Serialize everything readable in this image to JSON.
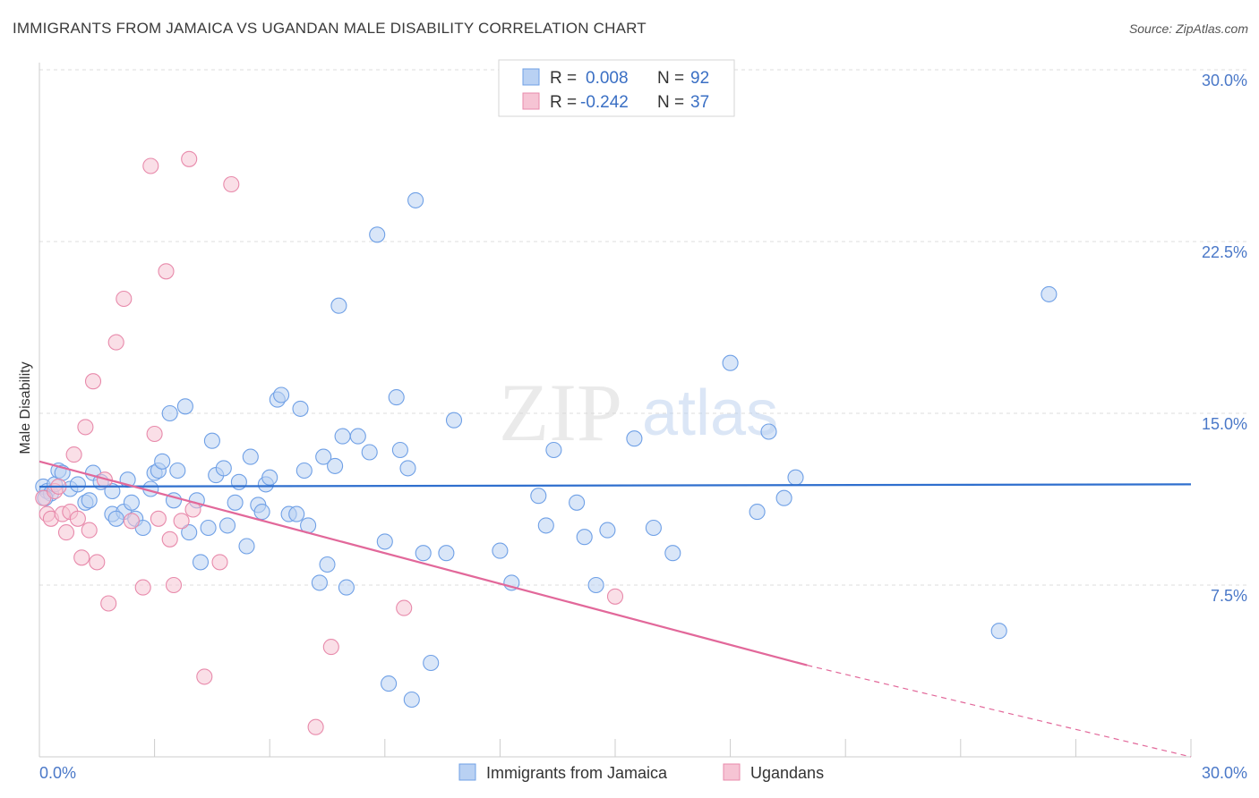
{
  "title": "IMMIGRANTS FROM JAMAICA VS UGANDAN MALE DISABILITY CORRELATION CHART",
  "source": "Source: ZipAtlas.com",
  "watermark": {
    "zip": "ZIP",
    "atlas": "atlas"
  },
  "colors": {
    "blue": "#6fa0e6",
    "blue_fill": "#b9d1f3",
    "blue_line": "#2f6fce",
    "pink": "#e88aab",
    "pink_fill": "#f6c4d4",
    "pink_line": "#e2689a",
    "tick_text": "#4a78c8"
  },
  "legend": {
    "rows": [
      {
        "r_label": "R =",
        "r_value": "0.008",
        "n_label": "N =",
        "n_value": "92"
      },
      {
        "r_label": "R =",
        "r_value": "-0.242",
        "n_label": "N =",
        "n_value": "37"
      }
    ]
  },
  "chart_data": {
    "type": "scatter",
    "ylabel": "Male Disability",
    "xlim": [
      0,
      30
    ],
    "ylim": [
      0,
      30
    ],
    "x_tick_labels": [
      "0.0%",
      "30.0%"
    ],
    "y_ticks": [
      7.5,
      15.0,
      22.5,
      30.0
    ],
    "y_tick_labels": [
      "7.5%",
      "15.0%",
      "22.5%",
      "30.0%"
    ],
    "grid": "horizontal dashed",
    "series": [
      {
        "name": "Immigrants from Jamaica",
        "color": "#6fa0e6",
        "trend": {
          "x": [
            0,
            30
          ],
          "y": [
            11.8,
            11.9
          ]
        },
        "points": [
          [
            0.1,
            11.8
          ],
          [
            0.2,
            11.6
          ],
          [
            0.3,
            11.5
          ],
          [
            0.4,
            11.9
          ],
          [
            0.5,
            12.5
          ],
          [
            0.6,
            12.4
          ],
          [
            0.8,
            11.7
          ],
          [
            1.0,
            11.9
          ],
          [
            1.2,
            11.1
          ],
          [
            1.3,
            11.2
          ],
          [
            1.4,
            12.4
          ],
          [
            1.6,
            12.0
          ],
          [
            1.9,
            11.6
          ],
          [
            1.9,
            10.6
          ],
          [
            2.2,
            10.7
          ],
          [
            2.3,
            12.1
          ],
          [
            2.4,
            11.1
          ],
          [
            2.5,
            10.4
          ],
          [
            2.7,
            10.0
          ],
          [
            2.9,
            11.7
          ],
          [
            3.0,
            12.4
          ],
          [
            3.1,
            12.5
          ],
          [
            3.2,
            12.9
          ],
          [
            3.4,
            15.0
          ],
          [
            3.5,
            11.2
          ],
          [
            3.6,
            12.5
          ],
          [
            3.8,
            15.3
          ],
          [
            3.9,
            9.8
          ],
          [
            4.1,
            11.2
          ],
          [
            4.2,
            8.5
          ],
          [
            4.4,
            10.0
          ],
          [
            4.5,
            13.8
          ],
          [
            4.6,
            12.3
          ],
          [
            4.8,
            12.6
          ],
          [
            4.9,
            10.1
          ],
          [
            5.1,
            11.1
          ],
          [
            5.2,
            12.0
          ],
          [
            5.4,
            9.2
          ],
          [
            5.5,
            13.1
          ],
          [
            5.7,
            11.0
          ],
          [
            5.8,
            10.7
          ],
          [
            5.9,
            11.9
          ],
          [
            6.0,
            12.2
          ],
          [
            6.2,
            15.6
          ],
          [
            6.3,
            15.8
          ],
          [
            6.5,
            10.6
          ],
          [
            6.7,
            10.6
          ],
          [
            6.8,
            15.2
          ],
          [
            6.9,
            12.5
          ],
          [
            7.0,
            10.1
          ],
          [
            7.3,
            7.6
          ],
          [
            7.4,
            13.1
          ],
          [
            7.5,
            8.4
          ],
          [
            7.7,
            12.7
          ],
          [
            7.8,
            19.7
          ],
          [
            7.9,
            14.0
          ],
          [
            8.0,
            7.4
          ],
          [
            8.3,
            14.0
          ],
          [
            8.6,
            13.3
          ],
          [
            8.8,
            22.8
          ],
          [
            9.0,
            9.4
          ],
          [
            9.3,
            15.7
          ],
          [
            9.4,
            13.4
          ],
          [
            9.6,
            12.6
          ],
          [
            9.7,
            2.5
          ],
          [
            9.8,
            24.3
          ],
          [
            10.0,
            8.9
          ],
          [
            10.2,
            4.1
          ],
          [
            10.6,
            8.9
          ],
          [
            10.8,
            14.7
          ],
          [
            12.0,
            9.0
          ],
          [
            12.3,
            7.6
          ],
          [
            13.0,
            11.4
          ],
          [
            13.2,
            10.1
          ],
          [
            13.4,
            13.4
          ],
          [
            14.0,
            11.1
          ],
          [
            14.2,
            9.6
          ],
          [
            14.5,
            7.5
          ],
          [
            14.8,
            9.9
          ],
          [
            15.5,
            13.9
          ],
          [
            16.0,
            10.0
          ],
          [
            16.5,
            8.9
          ],
          [
            18.0,
            17.2
          ],
          [
            18.7,
            10.7
          ],
          [
            19.0,
            14.2
          ],
          [
            19.4,
            11.3
          ],
          [
            19.7,
            12.2
          ],
          [
            25.0,
            5.5
          ],
          [
            26.3,
            20.2
          ],
          [
            9.1,
            3.2
          ],
          [
            0.15,
            11.3
          ],
          [
            2.0,
            10.4
          ]
        ]
      },
      {
        "name": "Ugandans",
        "color": "#e88aab",
        "trend": {
          "x": [
            0,
            20
          ],
          "y": [
            12.9,
            4.0
          ],
          "dash_to": [
            30,
            0
          ]
        },
        "points": [
          [
            0.1,
            11.3
          ],
          [
            0.2,
            10.6
          ],
          [
            0.3,
            10.4
          ],
          [
            0.4,
            11.6
          ],
          [
            0.5,
            11.8
          ],
          [
            0.6,
            10.6
          ],
          [
            0.7,
            9.8
          ],
          [
            0.8,
            10.7
          ],
          [
            0.9,
            13.2
          ],
          [
            1.0,
            10.4
          ],
          [
            1.1,
            8.7
          ],
          [
            1.2,
            14.4
          ],
          [
            1.3,
            9.9
          ],
          [
            1.4,
            16.4
          ],
          [
            1.5,
            8.5
          ],
          [
            1.7,
            12.1
          ],
          [
            1.8,
            6.7
          ],
          [
            2.0,
            18.1
          ],
          [
            2.2,
            20.0
          ],
          [
            2.4,
            10.3
          ],
          [
            2.7,
            7.4
          ],
          [
            2.9,
            25.8
          ],
          [
            3.0,
            14.1
          ],
          [
            3.1,
            10.4
          ],
          [
            3.3,
            21.2
          ],
          [
            3.4,
            9.5
          ],
          [
            3.5,
            7.5
          ],
          [
            3.7,
            10.3
          ],
          [
            3.9,
            26.1
          ],
          [
            4.0,
            10.8
          ],
          [
            4.3,
            3.5
          ],
          [
            4.7,
            8.5
          ],
          [
            5.0,
            25.0
          ],
          [
            7.2,
            1.3
          ],
          [
            7.6,
            4.8
          ],
          [
            9.5,
            6.5
          ],
          [
            15.0,
            7.0
          ]
        ]
      }
    ]
  }
}
